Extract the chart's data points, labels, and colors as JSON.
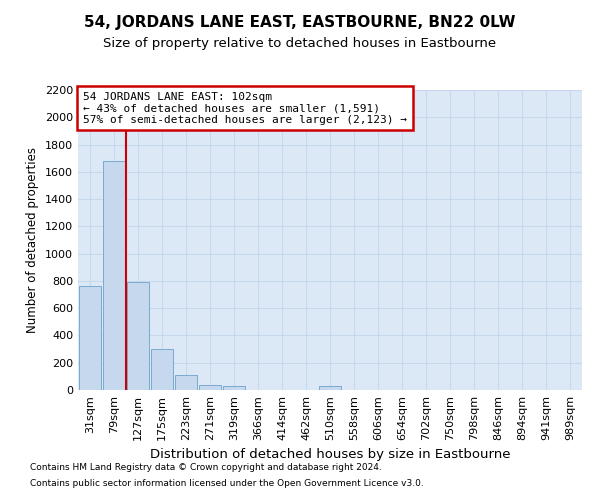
{
  "title": "54, JORDANS LANE EAST, EASTBOURNE, BN22 0LW",
  "subtitle": "Size of property relative to detached houses in Eastbourne",
  "xlabel": "Distribution of detached houses by size in Eastbourne",
  "ylabel": "Number of detached properties",
  "footnote1": "Contains HM Land Registry data © Crown copyright and database right 2024.",
  "footnote2": "Contains public sector information licensed under the Open Government Licence v3.0.",
  "categories": [
    "31sqm",
    "79sqm",
    "127sqm",
    "175sqm",
    "223sqm",
    "271sqm",
    "319sqm",
    "366sqm",
    "414sqm",
    "462sqm",
    "510sqm",
    "558sqm",
    "606sqm",
    "654sqm",
    "702sqm",
    "750sqm",
    "798sqm",
    "846sqm",
    "894sqm",
    "941sqm",
    "989sqm"
  ],
  "values": [
    760,
    1680,
    790,
    300,
    110,
    40,
    28,
    0,
    0,
    0,
    28,
    0,
    0,
    0,
    0,
    0,
    0,
    0,
    0,
    0,
    0
  ],
  "bar_color": "#c5d8ee",
  "bar_edge_color": "#7aaad0",
  "grid_color": "#c8d8ec",
  "bg_color": "#dce8f5",
  "vline_color": "#cc0000",
  "vline_x": 1.5,
  "annotation_line1": "54 JORDANS LANE EAST: 102sqm",
  "annotation_line2": "← 43% of detached houses are smaller (1,591)",
  "annotation_line3": "57% of semi-detached houses are larger (2,123) →",
  "anno_box_edge": "#cc0000",
  "ylim_max": 2200,
  "ytick_step": 200,
  "title_fontsize": 11,
  "subtitle_fontsize": 9.5
}
